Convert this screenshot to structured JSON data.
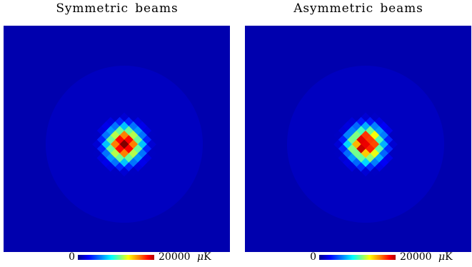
{
  "chart_data": [
    {
      "type": "heatmap",
      "title": "Symmetric beams",
      "colorbar": {
        "min_label": "0",
        "max_label": "20000",
        "unit_symbol": "μ",
        "unit_letter": "K"
      },
      "value_range": [
        0,
        20000
      ],
      "colormap": "jet",
      "peak_value": 20000,
      "spread": 0.5,
      "asymmetry": 0.0,
      "grid": false,
      "background_value": 600
    },
    {
      "type": "heatmap",
      "title": "Asymmetric beams",
      "colorbar": {
        "min_label": "0",
        "max_label": "20000",
        "unit_symbol": "μ",
        "unit_letter": "K"
      },
      "value_range": [
        0,
        20000
      ],
      "colormap": "jet",
      "peak_value": 20000,
      "spread": 0.5,
      "asymmetry": 0.12,
      "grid": false,
      "background_value": 600
    }
  ]
}
